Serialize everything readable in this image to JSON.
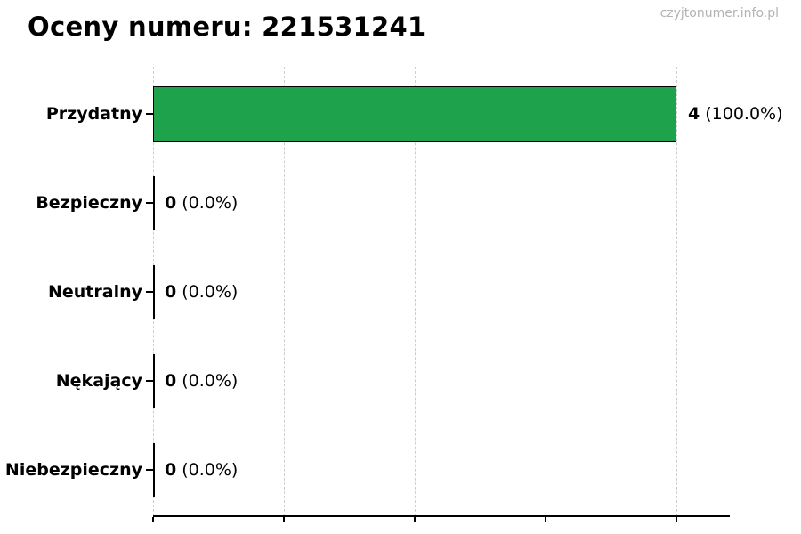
{
  "title": "Oceny numeru: 221531241",
  "watermark": "czyjtonumer.info.pl",
  "colors": {
    "bar_fill": "#1fa24c",
    "bar_edge": "#000000",
    "grid": "#cdcdcd",
    "axis": "#000000",
    "title_text": "#000000",
    "watermark_text": "#b3b3b3"
  },
  "chart_data": {
    "type": "bar",
    "orientation": "horizontal",
    "title": "Oceny numeru: 221531241",
    "categories": [
      "Przydatny",
      "Bezpieczny",
      "Neutralny",
      "Nękający",
      "Niebezpieczny"
    ],
    "values": [
      4,
      0,
      0,
      0,
      0
    ],
    "percentages": [
      100.0,
      0.0,
      0.0,
      0.0,
      0.0
    ],
    "value_labels": [
      "4 (100.0%)",
      "0 (0.0%)",
      "0 (0.0%)",
      "0 (0.0%)",
      "0 (0.0%)"
    ],
    "xlabel": "",
    "ylabel": "",
    "xlim": [
      0,
      4.4
    ],
    "axis_max_gridline": 4,
    "gridline_values": [
      0,
      1,
      2,
      3,
      4
    ],
    "grid": true,
    "tick_labels_shown": false,
    "legend_position": "none"
  },
  "rows": [
    {
      "label": "Przydatny",
      "count": "4",
      "pct": "(100.0%)"
    },
    {
      "label": "Bezpieczny",
      "count": "0",
      "pct": "(0.0%)"
    },
    {
      "label": "Neutralny",
      "count": "0",
      "pct": "(0.0%)"
    },
    {
      "label": "Nękający",
      "count": "0",
      "pct": "(0.0%)"
    },
    {
      "label": "Niebezpieczny",
      "count": "0",
      "pct": "(0.0%)"
    }
  ]
}
